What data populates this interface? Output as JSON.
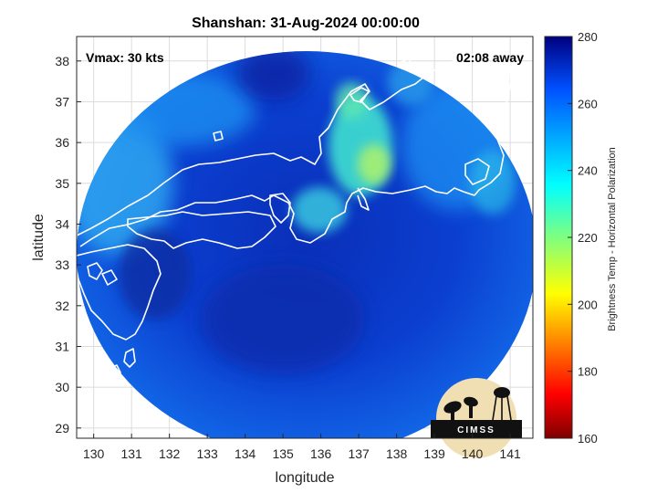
{
  "title": "Shanshan: 31-Aug-2024 00:00:00",
  "annotations": {
    "vmax": "Vmax: 30 kts",
    "time_away": "02:08 away"
  },
  "axes": {
    "xlabel": "longitude",
    "ylabel": "latitude",
    "x_ticks": [
      130,
      131,
      132,
      133,
      134,
      135,
      136,
      137,
      138,
      139,
      140,
      141
    ],
    "y_ticks": [
      29,
      30,
      31,
      32,
      33,
      34,
      35,
      36,
      37,
      38
    ],
    "xlim": [
      129.55,
      141.6
    ],
    "ylim": [
      28.75,
      38.6
    ],
    "grid": true
  },
  "colorbar": {
    "label": "Brightness Temp - Horizontal Polarization",
    "ticks": [
      160,
      180,
      200,
      220,
      240,
      260,
      280
    ],
    "range": [
      160,
      280
    ],
    "colormap": "jet"
  },
  "logo": {
    "text": "CIMSS"
  },
  "colors": {
    "ocean_bg": "#0a3ed6",
    "swath_edge": "#0c5fe8",
    "coast": "#ffffff"
  }
}
